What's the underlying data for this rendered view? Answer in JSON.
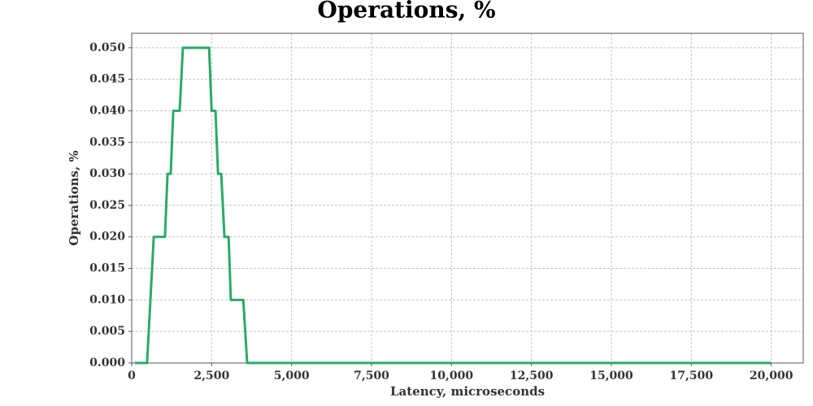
{
  "chart_data": {
    "type": "line",
    "title": "Operations, %",
    "x_label": "Latency, microseconds",
    "y_label": "Operations, %",
    "x": [
      100,
      480,
      690,
      1040,
      1120,
      1220,
      1300,
      1500,
      1600,
      2420,
      2500,
      2620,
      2700,
      2800,
      2900,
      3030,
      3100,
      3490,
      3610,
      20000
    ],
    "values": [
      0,
      0,
      0.02,
      0.02,
      0.03,
      0.03,
      0.04,
      0.04,
      0.05,
      0.05,
      0.04,
      0.04,
      0.03,
      0.03,
      0.02,
      0.02,
      0.01,
      0.01,
      0,
      0
    ],
    "color": "#2aab67",
    "xlim": [
      0,
      21000
    ],
    "xticks": [
      0,
      {
        "value": 2500,
        "label": "2,500"
      },
      {
        "value": 5000,
        "label": "5,000"
      },
      {
        "value": 7500,
        "label": "7,500"
      },
      {
        "value": 10000,
        "label": "10,000"
      },
      {
        "value": 12500,
        "label": "12,500"
      },
      {
        "value": 15000,
        "label": "15,000"
      },
      {
        "value": 17500,
        "label": "17,500"
      },
      {
        "value": 20000,
        "label": "20,000"
      }
    ],
    "ylim": [
      0,
      0.0523
    ],
    "yticks": [
      {
        "value": 0,
        "label": "0.000"
      },
      {
        "value": 0.005,
        "label": "0.005"
      },
      {
        "value": 0.01,
        "label": "0.010"
      },
      {
        "value": 0.015,
        "label": "0.015"
      },
      {
        "value": 0.02,
        "label": "0.020"
      },
      {
        "value": 0.025,
        "label": "0.025"
      },
      {
        "value": 0.03,
        "label": "0.030"
      },
      {
        "value": 0.035,
        "label": "0.035"
      },
      {
        "value": 0.04,
        "label": "0.040"
      },
      {
        "value": 0.045,
        "label": "0.045"
      },
      {
        "value": 0.05,
        "label": "0.050"
      }
    ],
    "grid": true
  }
}
